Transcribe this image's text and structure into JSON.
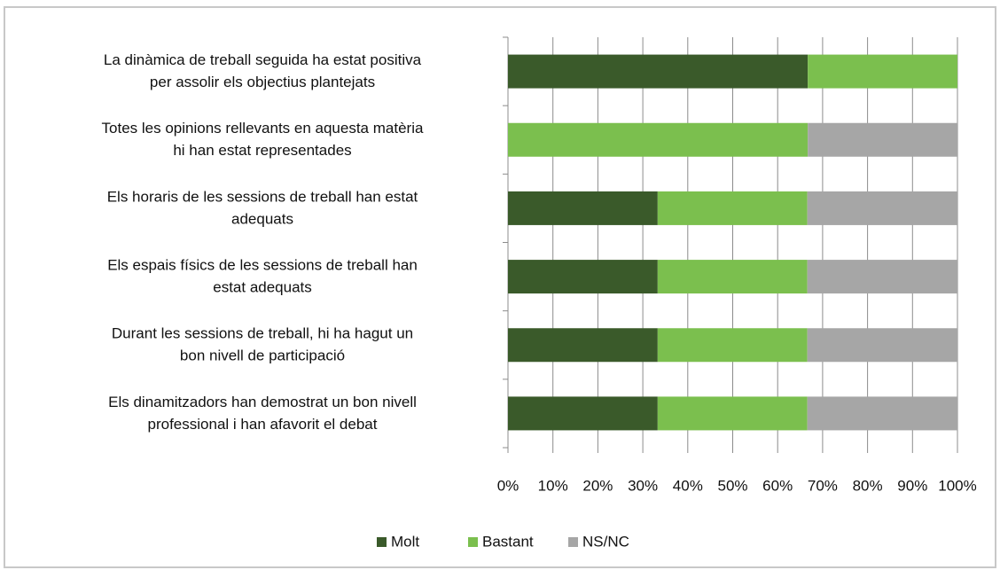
{
  "chart_data": {
    "type": "stacked-bar-horizontal",
    "categories": [
      [
        "La dinàmica de treball seguida ha estat positiva",
        "per assolir els objectius plantejats"
      ],
      [
        "Totes les opinions rellevants en aquesta matèria",
        "hi han estat representades"
      ],
      [
        "Els horaris de les sessions de treball han estat",
        "adequats"
      ],
      [
        "Els espais físics de les sessions de treball han",
        "estat adequats"
      ],
      [
        "Durant les sessions de treball, hi ha hagut un",
        "bon nivell de participació"
      ],
      [
        "Els dinamitzadors han demostrat un bon nivell",
        "professional i han afavorit el debat"
      ]
    ],
    "series": [
      {
        "name": "Molt",
        "color": "#3a5a2a",
        "values": [
          66.7,
          0,
          33.3,
          33.3,
          33.3,
          33.3
        ]
      },
      {
        "name": "Bastant",
        "color": "#7bbf4e",
        "values": [
          33.3,
          66.7,
          33.3,
          33.3,
          33.3,
          33.3
        ]
      },
      {
        "name": "NS/NC",
        "color": "#a6a6a6",
        "values": [
          0,
          33.3,
          33.4,
          33.4,
          33.4,
          33.4
        ]
      }
    ],
    "xlim": [
      0,
      100
    ],
    "xticks": [
      {
        "value": 0,
        "label": "0%"
      },
      {
        "value": 10,
        "label": "10%"
      },
      {
        "value": 20,
        "label": "20%"
      },
      {
        "value": 30,
        "label": "30%"
      },
      {
        "value": 40,
        "label": "40%"
      },
      {
        "value": 50,
        "label": "50%"
      },
      {
        "value": 60,
        "label": "60%"
      },
      {
        "value": 70,
        "label": "70%"
      },
      {
        "value": 80,
        "label": "80%"
      },
      {
        "value": 90,
        "label": "90%"
      },
      {
        "value": 100,
        "label": "100%"
      }
    ],
    "grid": true,
    "legend": "bottom"
  }
}
